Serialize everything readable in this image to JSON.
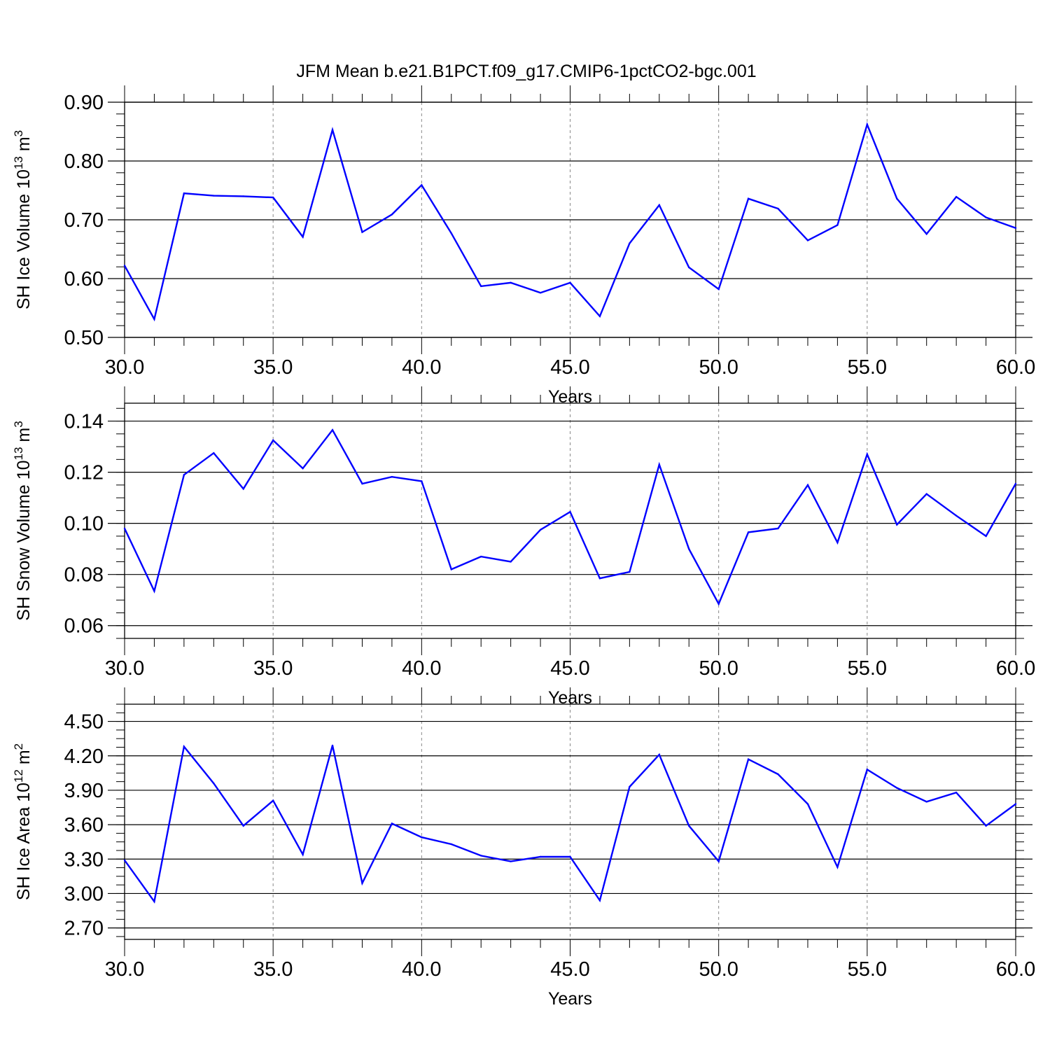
{
  "title": "JFM Mean b.e21.B1PCT.f09_g17.CMIP6-1pctCO2-bgc.001",
  "chart_data": [
    {
      "type": "line",
      "title": "JFM Mean b.e21.B1PCT.f09_g17.CMIP6-1pctCO2-bgc.001",
      "xlabel": "Years",
      "ylabel": "SH Ice Volume",
      "ylabel_unit_base": "10",
      "ylabel_unit_exp": "13",
      "ylabel_unit_suffix": "m",
      "ylabel_unit_suffix_exp": "3",
      "xlim": [
        30,
        60
      ],
      "ylim": [
        0.5,
        0.9
      ],
      "xticks": [
        "30.0",
        "35.0",
        "40.0",
        "45.0",
        "50.0",
        "55.0",
        "60.0"
      ],
      "yticks": [
        "0.50",
        "0.60",
        "0.70",
        "0.80",
        "0.90"
      ],
      "grid": "vertical dashed at major x ticks",
      "color": "#0000ff",
      "x": [
        30,
        31,
        32,
        33,
        34,
        35,
        36,
        37,
        38,
        39,
        40,
        41,
        42,
        43,
        44,
        45,
        46,
        47,
        48,
        49,
        50,
        51,
        52,
        53,
        54,
        55,
        56,
        57,
        58,
        59,
        60
      ],
      "values": [
        0.622,
        0.531,
        0.745,
        0.741,
        0.74,
        0.738,
        0.671,
        0.853,
        0.679,
        0.709,
        0.759,
        0.677,
        0.587,
        0.593,
        0.576,
        0.593,
        0.536,
        0.66,
        0.725,
        0.619,
        0.582,
        0.736,
        0.719,
        0.665,
        0.691,
        0.862,
        0.736,
        0.676,
        0.739,
        0.704,
        0.686
      ]
    },
    {
      "type": "line",
      "xlabel": "Years",
      "ylabel": "SH Snow Volume",
      "ylabel_unit_base": "10",
      "ylabel_unit_exp": "13",
      "ylabel_unit_suffix": "m",
      "ylabel_unit_suffix_exp": "3",
      "xlim": [
        30,
        60
      ],
      "ylim": [
        0.055,
        0.147
      ],
      "xticks": [
        "30.0",
        "35.0",
        "40.0",
        "45.0",
        "50.0",
        "55.0",
        "60.0"
      ],
      "yticks": [
        "0.06",
        "0.08",
        "0.10",
        "0.12",
        "0.14"
      ],
      "grid": "vertical dashed at major x ticks",
      "color": "#0000ff",
      "x": [
        30,
        31,
        32,
        33,
        34,
        35,
        36,
        37,
        38,
        39,
        40,
        41,
        42,
        43,
        44,
        45,
        46,
        47,
        48,
        49,
        50,
        51,
        52,
        53,
        54,
        55,
        56,
        57,
        58,
        59,
        60
      ],
      "values": [
        0.098,
        0.0735,
        0.119,
        0.1275,
        0.1135,
        0.1325,
        0.1215,
        0.1365,
        0.1155,
        0.1182,
        0.1165,
        0.082,
        0.087,
        0.085,
        0.0975,
        0.1045,
        0.0785,
        0.081,
        0.123,
        0.09,
        0.0685,
        0.0965,
        0.098,
        0.115,
        0.0925,
        0.127,
        0.0995,
        0.1115,
        0.103,
        0.095,
        0.1155
      ]
    },
    {
      "type": "line",
      "xlabel": "Years",
      "ylabel": "SH Ice Area",
      "ylabel_unit_base": "10",
      "ylabel_unit_exp": "12",
      "ylabel_unit_suffix": "m",
      "ylabel_unit_suffix_exp": "2",
      "xlim": [
        30,
        60
      ],
      "ylim": [
        2.6,
        4.65
      ],
      "xticks": [
        "30.0",
        "35.0",
        "40.0",
        "45.0",
        "50.0",
        "55.0",
        "60.0"
      ],
      "yticks": [
        "2.70",
        "3.00",
        "3.30",
        "3.60",
        "3.90",
        "4.20",
        "4.50"
      ],
      "grid": "vertical dashed at major x ticks",
      "color": "#0000ff",
      "x": [
        30,
        31,
        32,
        33,
        34,
        35,
        36,
        37,
        38,
        39,
        40,
        41,
        42,
        43,
        44,
        45,
        46,
        47,
        48,
        49,
        50,
        51,
        52,
        53,
        54,
        55,
        56,
        57,
        58,
        59,
        60
      ],
      "values": [
        3.29,
        2.93,
        4.28,
        3.96,
        3.59,
        3.81,
        3.34,
        4.29,
        3.09,
        3.61,
        3.49,
        3.43,
        3.33,
        3.28,
        3.32,
        3.32,
        2.94,
        3.93,
        4.21,
        3.59,
        3.28,
        4.17,
        4.04,
        3.78,
        3.23,
        4.08,
        3.92,
        3.8,
        3.88,
        3.59,
        3.78
      ]
    }
  ]
}
